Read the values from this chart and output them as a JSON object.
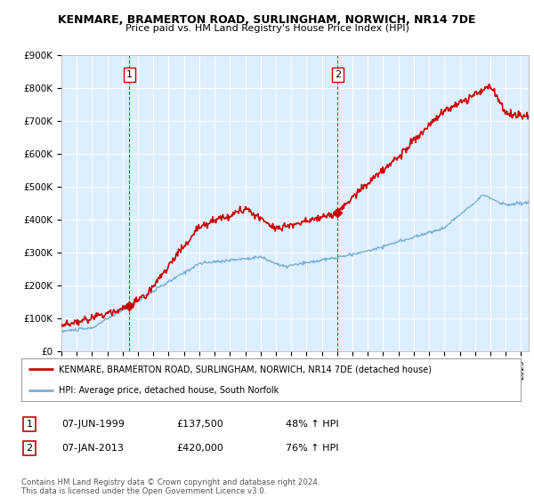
{
  "title": "KENMARE, BRAMERTON ROAD, SURLINGHAM, NORWICH, NR14 7DE",
  "subtitle": "Price paid vs. HM Land Registry's House Price Index (HPI)",
  "ylim": [
    0,
    900000
  ],
  "yticks": [
    0,
    100000,
    200000,
    300000,
    400000,
    500000,
    600000,
    700000,
    800000,
    900000
  ],
  "ytick_labels": [
    "£0",
    "£100K",
    "£200K",
    "£300K",
    "£400K",
    "£500K",
    "£600K",
    "£700K",
    "£800K",
    "£900K"
  ],
  "xstart_year": 1995,
  "xend_year": 2025,
  "red_color": "#cc0000",
  "blue_color": "#7ab0d4",
  "plot_bg_color": "#ddeeff",
  "marker1_year": 1999.44,
  "marker1_value": 137500,
  "marker1_label": "1",
  "marker2_year": 2013.03,
  "marker2_value": 420000,
  "marker2_label": "2",
  "legend_red_label": "KENMARE, BRAMERTON ROAD, SURLINGHAM, NORWICH, NR14 7DE (detached house)",
  "legend_blue_label": "HPI: Average price, detached house, South Norfolk",
  "table_row1": [
    "1",
    "07-JUN-1999",
    "£137,500",
    "48% ↑ HPI"
  ],
  "table_row2": [
    "2",
    "07-JAN-2013",
    "£420,000",
    "76% ↑ HPI"
  ],
  "footer": "Contains HM Land Registry data © Crown copyright and database right 2024.\nThis data is licensed under the Open Government Licence v3.0.",
  "background_color": "#ffffff"
}
